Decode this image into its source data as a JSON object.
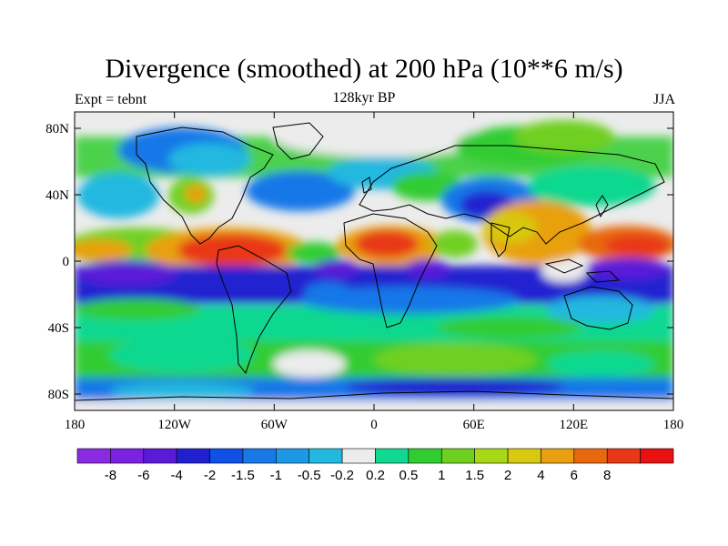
{
  "title": "Divergence (smoothed) at 200 hPa (10**6 m/s)",
  "left_label": "Expt = tebnt",
  "center_label": "128kyr BP",
  "right_label": "JJA",
  "lat_ticks": [
    "80N",
    "40N",
    "0",
    "40S",
    "80S"
  ],
  "lon_ticks": [
    "180",
    "120W",
    "60W",
    "0",
    "60E",
    "120E",
    "180"
  ],
  "colorbar": {
    "colors": [
      "#8a2be2",
      "#7a22e0",
      "#5a1ad8",
      "#2020d0",
      "#0f50e6",
      "#1878e8",
      "#1c98e6",
      "#22b8e0",
      "#ececec",
      "#10d890",
      "#30cc30",
      "#70d020",
      "#a8d818",
      "#d8c810",
      "#e8a010",
      "#e86810",
      "#e83818",
      "#e81010"
    ],
    "labels": [
      "-8",
      "-6",
      "-4",
      "-2",
      "-1.5",
      "-1",
      "-0.5",
      "-0.2",
      "0.2",
      "0.5",
      "1",
      "1.5",
      "2",
      "4",
      "6",
      "8"
    ]
  }
}
